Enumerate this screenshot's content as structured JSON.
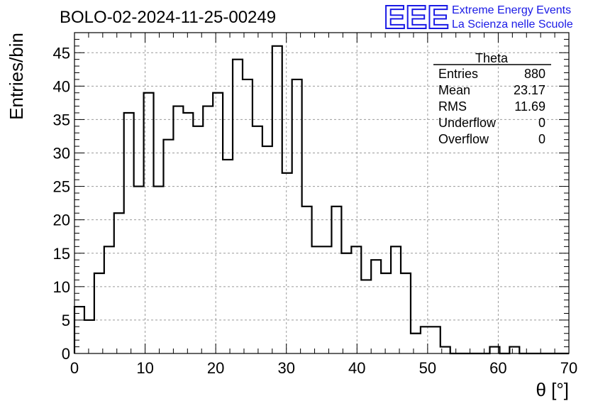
{
  "header": {
    "title": "BOLO-02-2024-11-25-00249",
    "logo_text": "EEE",
    "logo_line1": "Extreme Energy Events",
    "logo_line2": "La Scienza nelle Scuole",
    "logo_color": "#1a1ae6"
  },
  "stats": {
    "name": "Theta",
    "rows": [
      {
        "label": "Entries",
        "value": "880"
      },
      {
        "label": "Mean",
        "value": "23.17"
      },
      {
        "label": "RMS",
        "value": "11.69"
      },
      {
        "label": "Underflow",
        "value": "0"
      },
      {
        "label": "Overflow",
        "value": "0"
      }
    ]
  },
  "chart_data": {
    "type": "bar",
    "title": "BOLO-02-2024-11-25-00249",
    "xlabel": "θ [°]",
    "ylabel": "Entries/bin",
    "xlim": [
      0,
      70
    ],
    "ylim": [
      0,
      48
    ],
    "grid": true,
    "bin_width": 1.4,
    "x_ticks": [
      0,
      10,
      20,
      30,
      40,
      50,
      60,
      70
    ],
    "y_ticks": [
      0,
      5,
      10,
      15,
      20,
      25,
      30,
      35,
      40,
      45
    ],
    "values": [
      7,
      5,
      12,
      16,
      21,
      36,
      25,
      39,
      25,
      32,
      37,
      36,
      34,
      37,
      39,
      29,
      44,
      41,
      34,
      31,
      46,
      27,
      41,
      22,
      16,
      16,
      22,
      15,
      16,
      11,
      14,
      12,
      16,
      12,
      3,
      4,
      4,
      1,
      0,
      0,
      0,
      0,
      1,
      0,
      1,
      0,
      0,
      0,
      0,
      0
    ],
    "line_color": "#000000"
  }
}
